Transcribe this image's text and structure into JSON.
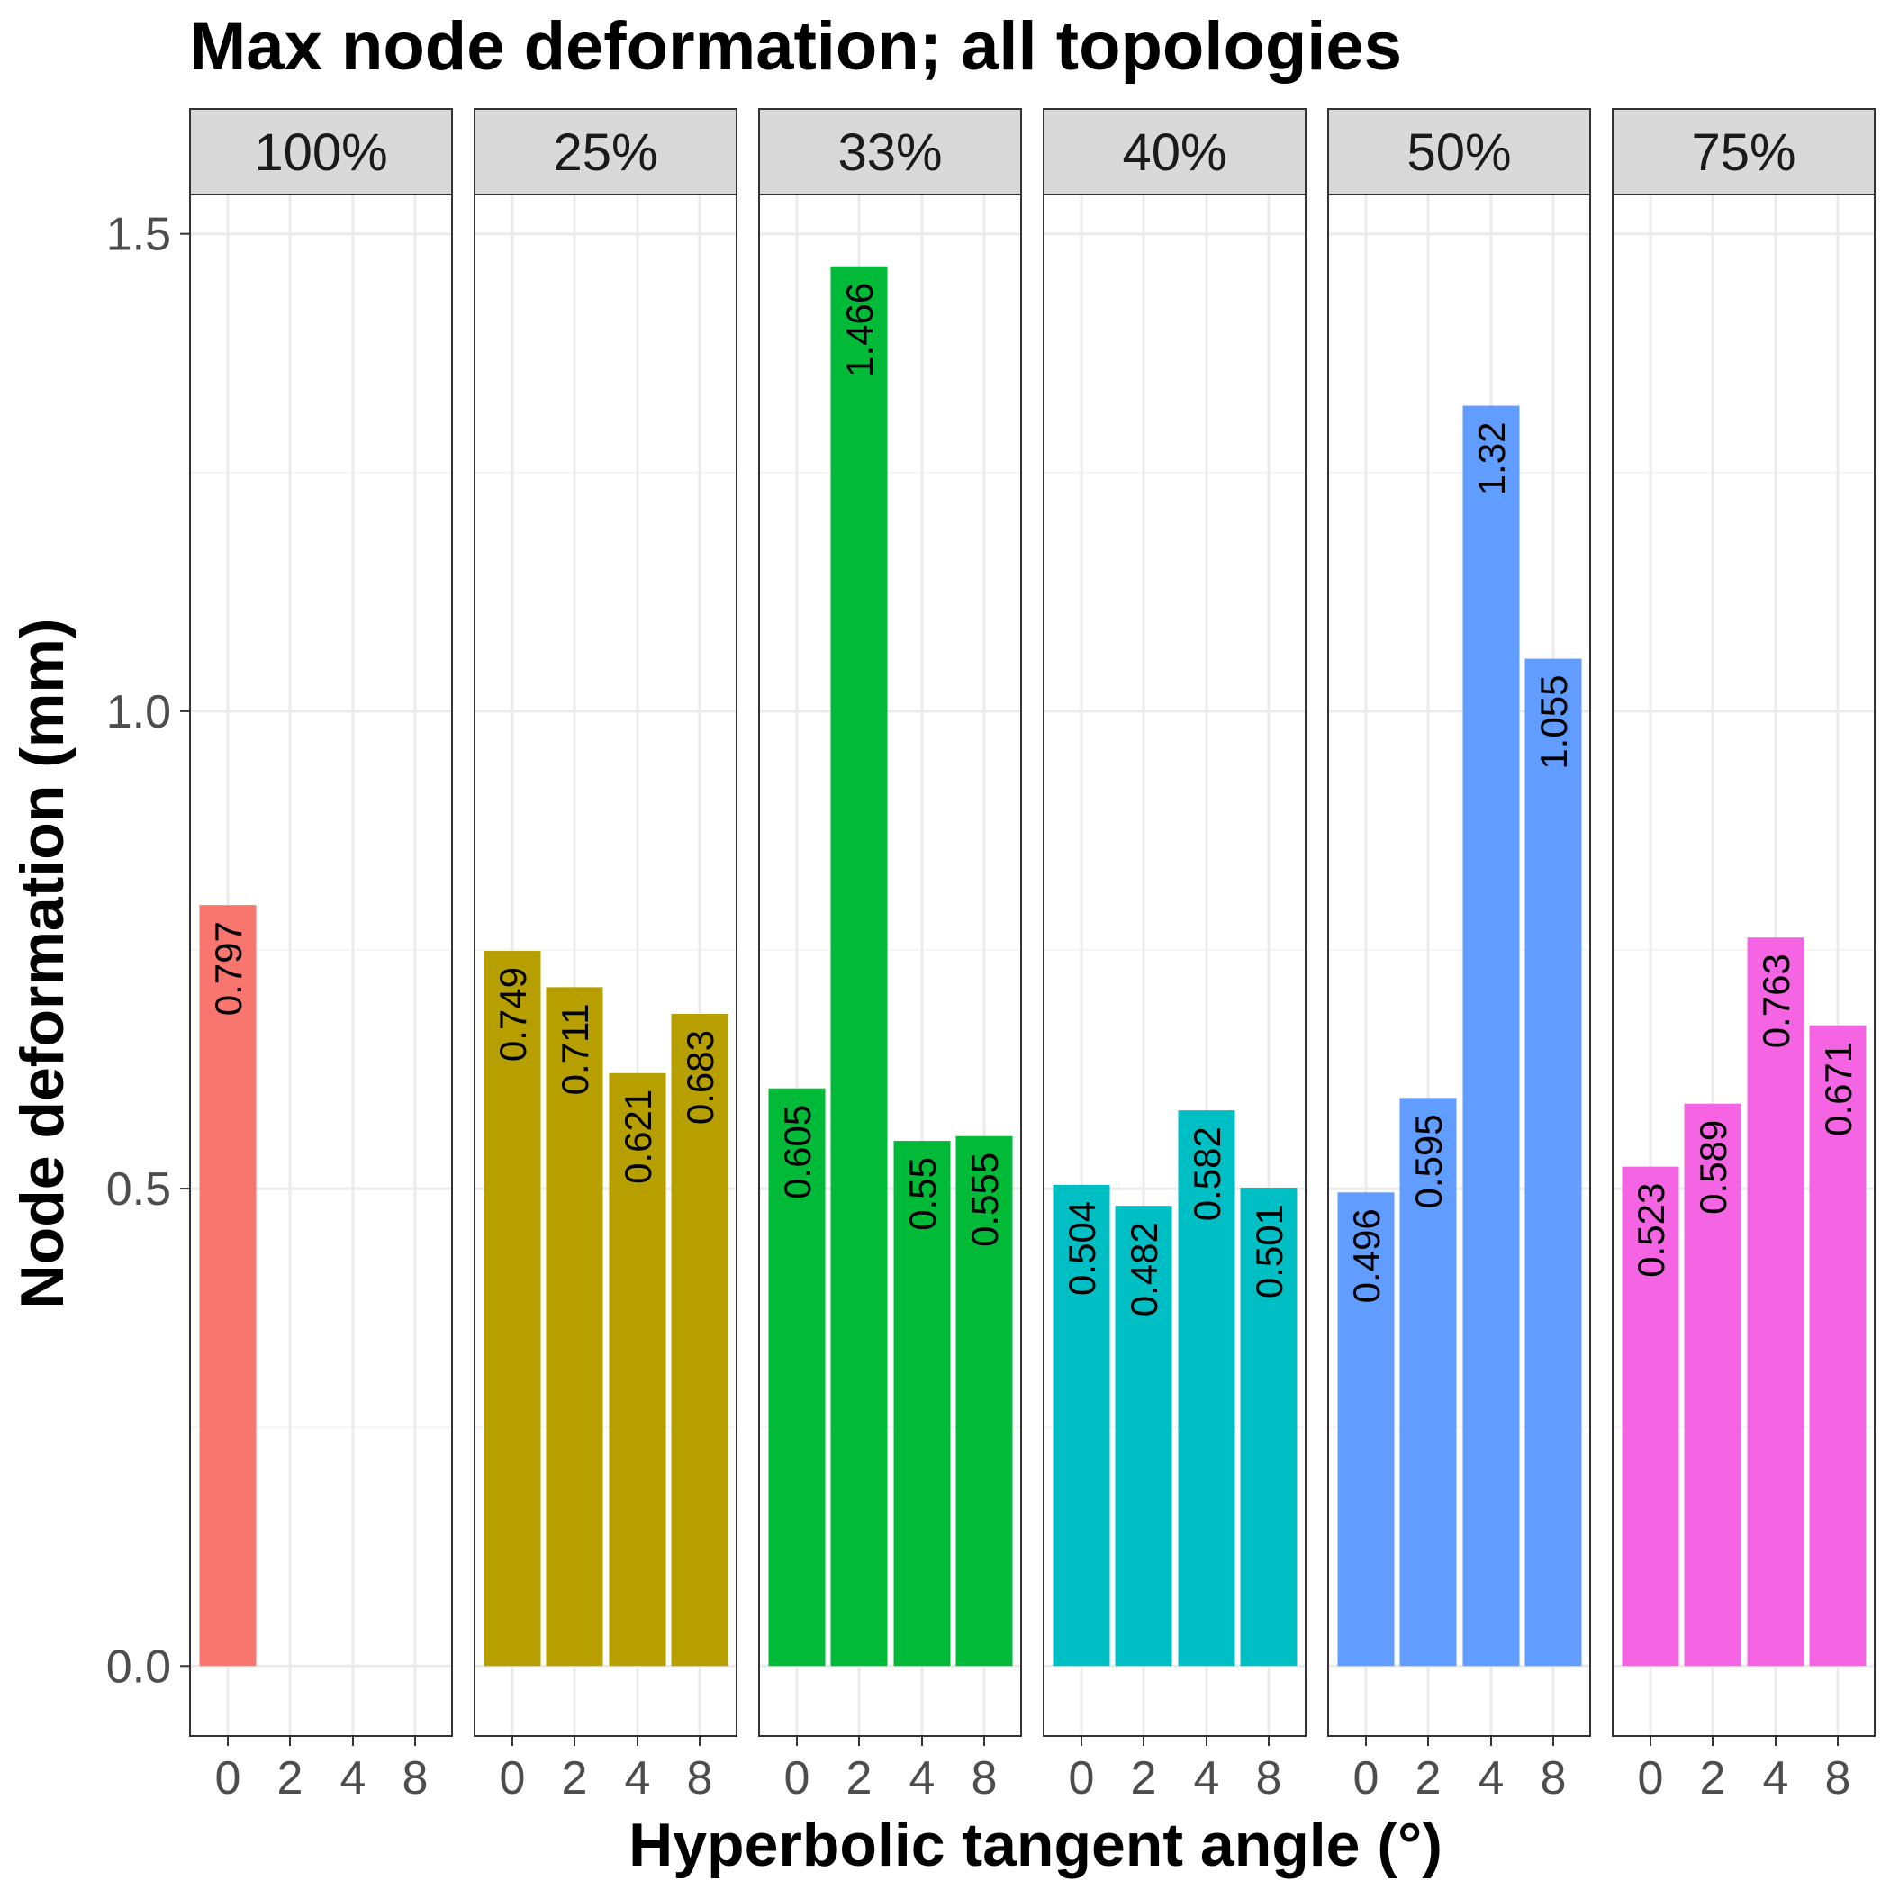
{
  "chart_data": {
    "type": "bar",
    "title": "Max node deformation; all topologies",
    "xlabel": "Hyperbolic tangent angle (°)",
    "ylabel": "Node deformation (mm)",
    "ylim": [
      0,
      1.5
    ],
    "y_ticks": [
      "0.0",
      "0.5",
      "1.0",
      "1.5"
    ],
    "x_ticks": [
      "0",
      "2",
      "4",
      "8"
    ],
    "grid": true,
    "legend": "none",
    "facets": [
      {
        "label": "100%",
        "color": "#F8766D",
        "bars": [
          {
            "x": "0",
            "value": 0.797,
            "label": "0.797"
          }
        ]
      },
      {
        "label": "25%",
        "color": "#B79F00",
        "bars": [
          {
            "x": "0",
            "value": 0.749,
            "label": "0.749"
          },
          {
            "x": "2",
            "value": 0.711,
            "label": "0.711"
          },
          {
            "x": "4",
            "value": 0.621,
            "label": "0.621"
          },
          {
            "x": "8",
            "value": 0.683,
            "label": "0.683"
          }
        ]
      },
      {
        "label": "33%",
        "color": "#00BA38",
        "bars": [
          {
            "x": "0",
            "value": 0.605,
            "label": "0.605"
          },
          {
            "x": "2",
            "value": 1.466,
            "label": "1.466"
          },
          {
            "x": "4",
            "value": 0.55,
            "label": "0.55"
          },
          {
            "x": "8",
            "value": 0.555,
            "label": "0.555"
          }
        ]
      },
      {
        "label": "40%",
        "color": "#00BFC4",
        "bars": [
          {
            "x": "0",
            "value": 0.504,
            "label": "0.504"
          },
          {
            "x": "2",
            "value": 0.482,
            "label": "0.482"
          },
          {
            "x": "4",
            "value": 0.582,
            "label": "0.582"
          },
          {
            "x": "8",
            "value": 0.501,
            "label": "0.501"
          }
        ]
      },
      {
        "label": "50%",
        "color": "#619CFF",
        "bars": [
          {
            "x": "0",
            "value": 0.496,
            "label": "0.496"
          },
          {
            "x": "2",
            "value": 0.595,
            "label": "0.595"
          },
          {
            "x": "4",
            "value": 1.32,
            "label": "1.32"
          },
          {
            "x": "8",
            "value": 1.055,
            "label": "1.055"
          }
        ]
      },
      {
        "label": "75%",
        "color": "#F564E3",
        "bars": [
          {
            "x": "0",
            "value": 0.523,
            "label": "0.523"
          },
          {
            "x": "2",
            "value": 0.589,
            "label": "0.589"
          },
          {
            "x": "4",
            "value": 0.763,
            "label": "0.763"
          },
          {
            "x": "8",
            "value": 0.671,
            "label": "0.671"
          }
        ]
      }
    ]
  }
}
